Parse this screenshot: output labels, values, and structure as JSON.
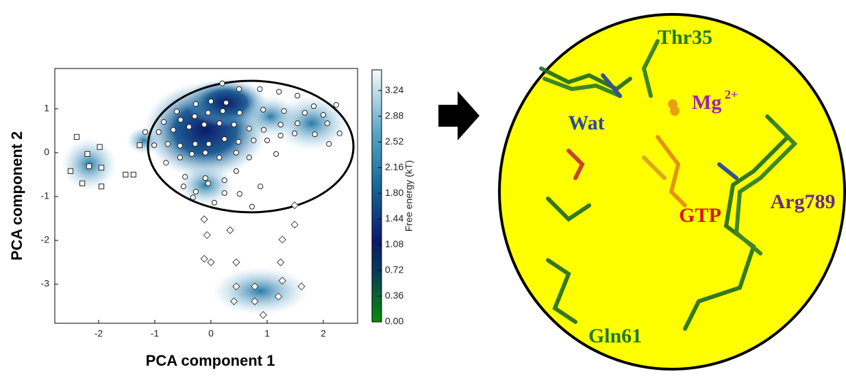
{
  "chart_data": {
    "type": "scatter",
    "xlabel": "PCA component 1",
    "ylabel": "PCA component 2",
    "xlim": [
      -2.78,
      2.61
    ],
    "ylim": [
      -3.89,
      1.92
    ],
    "xticks": [
      -2,
      -1,
      0,
      1,
      2
    ],
    "yticks": [
      -3,
      -2,
      -1,
      0,
      1
    ],
    "colorbar": {
      "label": "Free energy (kT)",
      "lim": [
        0,
        3.53
      ],
      "ticks": [
        {
          "value": 0,
          "label": "0.00"
        },
        0.36,
        0.72,
        1.08,
        1.44,
        {
          "value": 1.8,
          "label": "1.80"
        },
        2.16,
        2.52,
        2.88,
        3.24
      ]
    },
    "series": [
      {
        "marker": "circle",
        "color": "#ffffff",
        "x": [
          0.2,
          0.5,
          0.87,
          1.21,
          1.54,
          1.83,
          2.23,
          -0.27,
          0.0,
          0.27,
          -0.61,
          -0.84,
          -0.54,
          -0.29,
          -0.05,
          0.21,
          0.51,
          0.93,
          1.3,
          1.67,
          2.0,
          -1.17,
          -0.93,
          -0.67,
          -0.39,
          -0.12,
          0.15,
          0.41,
          0.68,
          0.94,
          1.24,
          1.54,
          2.07,
          2.29,
          -1.01,
          -0.77,
          -0.55,
          -0.28,
          -0.04,
          0.24,
          0.49,
          0.76,
          1.0,
          1.24,
          1.49,
          1.85,
          2.1,
          -0.8,
          -0.55,
          -0.34,
          -0.1,
          0.15,
          0.45,
          0.68,
          1.16,
          -0.46,
          -0.1,
          0.45,
          -0.49,
          -0.05,
          0.24,
          -0.27,
          0.06,
          0.24,
          0.51,
          0.88,
          0.73,
          -0.32
        ],
        "y": [
          1.58,
          1.45,
          1.45,
          1.39,
          1.3,
          1.06,
          1.09,
          1.11,
          1.17,
          1.14,
          0.94,
          0.7,
          0.75,
          0.83,
          0.91,
          0.95,
          0.91,
          0.98,
          0.95,
          0.91,
          0.86,
          0.47,
          0.47,
          0.52,
          0.59,
          0.64,
          0.67,
          0.64,
          0.55,
          0.52,
          0.64,
          0.67,
          0.67,
          0.44,
          0.17,
          0.2,
          0.16,
          0.2,
          0.2,
          0.31,
          0.25,
          0.28,
          0.28,
          0.39,
          0.44,
          0.42,
          0.2,
          -0.23,
          -0.11,
          -0.03,
          0.0,
          -0.11,
          0.0,
          -0.11,
          -0.03,
          -0.55,
          -0.58,
          -0.42,
          -0.77,
          -0.7,
          -0.63,
          -0.89,
          -1.14,
          -0.92,
          -0.94,
          -0.77,
          -1.23,
          -1.02
        ]
      },
      {
        "marker": "square",
        "color": "#ffffff",
        "x": [
          -2.39,
          -1.98,
          -2.2,
          -2.5,
          -2.17,
          -1.95,
          -2.29,
          -1.95,
          -1.52,
          -1.38,
          -1.27
        ],
        "y": [
          0.36,
          0.13,
          -0.03,
          -0.42,
          -0.31,
          -0.34,
          -0.7,
          -0.77,
          -0.5,
          -0.5,
          0.17
        ]
      },
      {
        "marker": "diamond",
        "color": "#ffffff",
        "x": [
          1.49,
          -0.12,
          -0.07,
          0.34,
          1.49,
          1.27,
          -0.12,
          0.0,
          0.45,
          1.24,
          1.27,
          0.45,
          0.78,
          1.61,
          1.2,
          0.41,
          0.78,
          0.93
        ],
        "y": [
          -1.2,
          -1.52,
          -1.88,
          -1.77,
          -1.64,
          -1.98,
          -2.42,
          -2.5,
          -2.5,
          -2.5,
          -2.92,
          -3.05,
          -3.05,
          -3.05,
          -3.28,
          -3.39,
          -3.39,
          -3.7
        ]
      }
    ]
  },
  "structure": {
    "labels": {
      "thr35": "Thr35",
      "mg": "Mg",
      "mg_charge": "2+",
      "wat": "Wat",
      "gtp": "GTP",
      "arg789": "Arg789",
      "gln61": "Gln61"
    }
  }
}
